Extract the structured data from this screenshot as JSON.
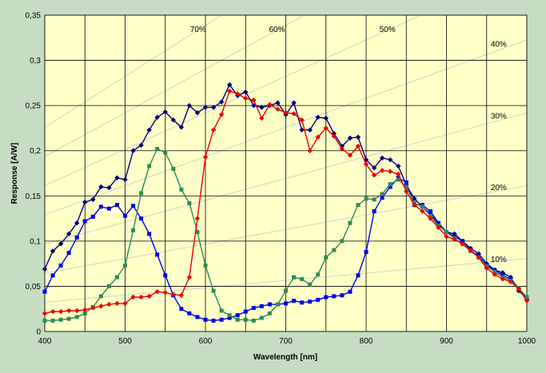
{
  "chart_data": {
    "type": "line",
    "title": "",
    "xlabel": "Wavelength [nm]",
    "ylabel": "Response [A/W]",
    "xlim": [
      400,
      1000
    ],
    "ylim": [
      0,
      0.35
    ],
    "x_ticks": [
      "400",
      "500",
      "600",
      "700",
      "800",
      "900",
      "1000"
    ],
    "y_ticks": [
      "0",
      "0,05",
      "0,1",
      "0,15",
      "0,2",
      "0,25",
      "0,3",
      "0,35"
    ],
    "grid": true,
    "legend": "none",
    "background_color": "#ffffc8",
    "reference_lines": [
      "10%",
      "20%",
      "30%",
      "40%",
      "50%",
      "60%",
      "70%"
    ],
    "series": [
      {
        "color": "#00007f",
        "marker": "diamond",
        "points": [
          [
            400,
            0.069
          ],
          [
            410,
            0.089
          ],
          [
            420,
            0.097
          ],
          [
            430,
            0.108
          ],
          [
            440,
            0.12
          ],
          [
            450,
            0.143
          ],
          [
            460,
            0.146
          ],
          [
            470,
            0.16
          ],
          [
            480,
            0.159
          ],
          [
            490,
            0.17
          ],
          [
            500,
            0.168
          ],
          [
            510,
            0.2
          ],
          [
            520,
            0.206
          ],
          [
            530,
            0.223
          ],
          [
            540,
            0.237
          ],
          [
            550,
            0.243
          ],
          [
            560,
            0.234
          ],
          [
            570,
            0.226
          ],
          [
            580,
            0.25
          ],
          [
            590,
            0.242
          ],
          [
            600,
            0.248
          ],
          [
            610,
            0.248
          ],
          [
            620,
            0.254
          ],
          [
            630,
            0.273
          ],
          [
            640,
            0.261
          ],
          [
            650,
            0.265
          ],
          [
            660,
            0.25
          ],
          [
            670,
            0.248
          ],
          [
            680,
            0.25
          ],
          [
            690,
            0.253
          ],
          [
            700,
            0.24
          ],
          [
            710,
            0.253
          ],
          [
            720,
            0.223
          ],
          [
            730,
            0.223
          ],
          [
            740,
            0.237
          ],
          [
            750,
            0.236
          ],
          [
            760,
            0.219
          ],
          [
            770,
            0.205
          ],
          [
            780,
            0.214
          ],
          [
            790,
            0.215
          ],
          [
            800,
            0.19
          ],
          [
            810,
            0.181
          ],
          [
            820,
            0.192
          ],
          [
            830,
            0.19
          ],
          [
            840,
            0.183
          ],
          [
            850,
            0.162
          ],
          [
            860,
            0.147
          ],
          [
            870,
            0.138
          ],
          [
            880,
            0.13
          ],
          [
            890,
            0.118
          ],
          [
            900,
            0.11
          ],
          [
            910,
            0.108
          ],
          [
            920,
            0.1
          ],
          [
            930,
            0.092
          ],
          [
            940,
            0.086
          ],
          [
            950,
            0.075
          ],
          [
            960,
            0.068
          ],
          [
            970,
            0.065
          ],
          [
            980,
            0.06
          ],
          [
            990,
            0.045
          ],
          [
            1000,
            0.036
          ]
        ]
      },
      {
        "color": "#0000ee",
        "marker": "square",
        "points": [
          [
            400,
            0.044
          ],
          [
            410,
            0.062
          ],
          [
            420,
            0.073
          ],
          [
            430,
            0.087
          ],
          [
            440,
            0.104
          ],
          [
            450,
            0.122
          ],
          [
            460,
            0.127
          ],
          [
            470,
            0.138
          ],
          [
            480,
            0.136
          ],
          [
            490,
            0.14
          ],
          [
            500,
            0.128
          ],
          [
            510,
            0.139
          ],
          [
            520,
            0.125
          ],
          [
            530,
            0.108
          ],
          [
            540,
            0.085
          ],
          [
            550,
            0.062
          ],
          [
            560,
            0.04
          ],
          [
            570,
            0.025
          ],
          [
            580,
            0.02
          ],
          [
            590,
            0.016
          ],
          [
            600,
            0.013
          ],
          [
            610,
            0.012
          ],
          [
            620,
            0.013
          ],
          [
            630,
            0.015
          ],
          [
            640,
            0.018
          ],
          [
            650,
            0.022
          ],
          [
            660,
            0.026
          ],
          [
            670,
            0.028
          ],
          [
            680,
            0.03
          ],
          [
            690,
            0.03
          ],
          [
            700,
            0.031
          ],
          [
            710,
            0.034
          ],
          [
            720,
            0.032
          ],
          [
            730,
            0.033
          ],
          [
            740,
            0.035
          ],
          [
            750,
            0.038
          ],
          [
            760,
            0.039
          ],
          [
            770,
            0.04
          ],
          [
            780,
            0.044
          ],
          [
            790,
            0.062
          ],
          [
            800,
            0.088
          ],
          [
            810,
            0.133
          ],
          [
            820,
            0.148
          ],
          [
            830,
            0.16
          ],
          [
            840,
            0.17
          ],
          [
            850,
            0.165
          ],
          [
            860,
            0.14
          ],
          [
            870,
            0.14
          ],
          [
            880,
            0.133
          ],
          [
            890,
            0.12
          ],
          [
            900,
            0.11
          ],
          [
            910,
            0.105
          ],
          [
            920,
            0.1
          ],
          [
            930,
            0.09
          ],
          [
            940,
            0.083
          ],
          [
            950,
            0.073
          ],
          [
            960,
            0.068
          ],
          [
            970,
            0.062
          ],
          [
            980,
            0.058
          ],
          [
            990,
            0.048
          ],
          [
            1000,
            0.037
          ]
        ]
      },
      {
        "color": "#2e8b57",
        "marker": "square",
        "points": [
          [
            400,
            0.012
          ],
          [
            410,
            0.012
          ],
          [
            420,
            0.013
          ],
          [
            430,
            0.014
          ],
          [
            440,
            0.016
          ],
          [
            450,
            0.02
          ],
          [
            460,
            0.027
          ],
          [
            470,
            0.039
          ],
          [
            480,
            0.05
          ],
          [
            490,
            0.06
          ],
          [
            500,
            0.073
          ],
          [
            510,
            0.112
          ],
          [
            520,
            0.153
          ],
          [
            530,
            0.183
          ],
          [
            540,
            0.202
          ],
          [
            550,
            0.198
          ],
          [
            560,
            0.18
          ],
          [
            570,
            0.157
          ],
          [
            580,
            0.142
          ],
          [
            590,
            0.11
          ],
          [
            600,
            0.073
          ],
          [
            610,
            0.045
          ],
          [
            620,
            0.023
          ],
          [
            630,
            0.018
          ],
          [
            640,
            0.013
          ],
          [
            650,
            0.013
          ],
          [
            660,
            0.012
          ],
          [
            670,
            0.015
          ],
          [
            680,
            0.02
          ],
          [
            690,
            0.03
          ],
          [
            700,
            0.045
          ],
          [
            710,
            0.06
          ],
          [
            720,
            0.058
          ],
          [
            730,
            0.052
          ],
          [
            740,
            0.063
          ],
          [
            750,
            0.082
          ],
          [
            760,
            0.09
          ],
          [
            770,
            0.1
          ],
          [
            780,
            0.12
          ],
          [
            790,
            0.14
          ],
          [
            800,
            0.147
          ],
          [
            810,
            0.146
          ],
          [
            820,
            0.152
          ],
          [
            830,
            0.163
          ],
          [
            840,
            0.168
          ],
          [
            850,
            0.16
          ],
          [
            860,
            0.142
          ],
          [
            870,
            0.138
          ],
          [
            880,
            0.128
          ],
          [
            890,
            0.117
          ],
          [
            900,
            0.11
          ],
          [
            910,
            0.103
          ],
          [
            920,
            0.097
          ],
          [
            930,
            0.089
          ],
          [
            940,
            0.082
          ],
          [
            950,
            0.072
          ],
          [
            960,
            0.066
          ],
          [
            970,
            0.06
          ],
          [
            980,
            0.056
          ],
          [
            990,
            0.048
          ],
          [
            1000,
            0.038
          ]
        ]
      },
      {
        "color": "#ee0000",
        "marker": "diamond",
        "points": [
          [
            400,
            0.02
          ],
          [
            410,
            0.022
          ],
          [
            420,
            0.022
          ],
          [
            430,
            0.023
          ],
          [
            440,
            0.023
          ],
          [
            450,
            0.024
          ],
          [
            460,
            0.026
          ],
          [
            470,
            0.028
          ],
          [
            480,
            0.03
          ],
          [
            490,
            0.031
          ],
          [
            500,
            0.031
          ],
          [
            510,
            0.038
          ],
          [
            520,
            0.038
          ],
          [
            530,
            0.039
          ],
          [
            540,
            0.044
          ],
          [
            550,
            0.043
          ],
          [
            560,
            0.041
          ],
          [
            570,
            0.04
          ],
          [
            580,
            0.06
          ],
          [
            590,
            0.125
          ],
          [
            600,
            0.193
          ],
          [
            610,
            0.223
          ],
          [
            620,
            0.24
          ],
          [
            630,
            0.266
          ],
          [
            640,
            0.263
          ],
          [
            650,
            0.258
          ],
          [
            660,
            0.256
          ],
          [
            670,
            0.236
          ],
          [
            680,
            0.251
          ],
          [
            690,
            0.246
          ],
          [
            700,
            0.242
          ],
          [
            710,
            0.241
          ],
          [
            720,
            0.234
          ],
          [
            730,
            0.2
          ],
          [
            740,
            0.215
          ],
          [
            750,
            0.225
          ],
          [
            760,
            0.216
          ],
          [
            770,
            0.202
          ],
          [
            780,
            0.195
          ],
          [
            790,
            0.205
          ],
          [
            800,
            0.185
          ],
          [
            810,
            0.173
          ],
          [
            820,
            0.178
          ],
          [
            830,
            0.177
          ],
          [
            840,
            0.174
          ],
          [
            850,
            0.155
          ],
          [
            860,
            0.14
          ],
          [
            870,
            0.133
          ],
          [
            880,
            0.125
          ],
          [
            890,
            0.115
          ],
          [
            900,
            0.105
          ],
          [
            910,
            0.102
          ],
          [
            920,
            0.097
          ],
          [
            930,
            0.09
          ],
          [
            940,
            0.082
          ],
          [
            950,
            0.07
          ],
          [
            960,
            0.063
          ],
          [
            970,
            0.058
          ],
          [
            980,
            0.055
          ],
          [
            990,
            0.047
          ],
          [
            1000,
            0.034
          ]
        ]
      }
    ]
  }
}
